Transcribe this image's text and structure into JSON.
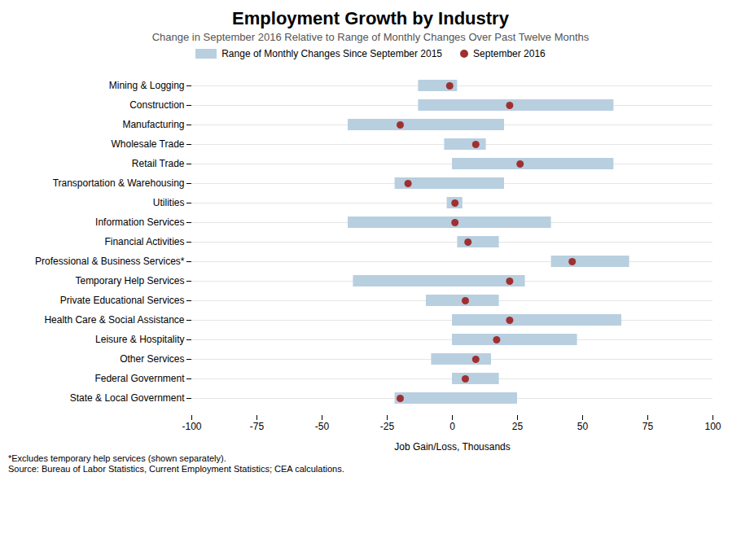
{
  "chart_data": {
    "type": "range",
    "orientation": "horizontal",
    "title": "Employment Growth by Industry",
    "subtitle": "Change in September 2016 Relative to Range of Monthly Changes Over Past Twelve Months",
    "xlabel": "Job Gain/Loss, Thousands",
    "annotations": [
      "*Excludes temporary help services (shown separately).",
      "Source: Bureau of Labor Statistics, Current Employment Statistics; CEA calculations."
    ],
    "categories": [
      "Mining & Logging",
      "Construction",
      "Manufacturing",
      "Wholesale Trade",
      "Retail Trade",
      "Transportation & Warehousing",
      "Utilities",
      "Information Services",
      "Financial Activities",
      "Professional & Business Services*",
      "Temporary Help Services",
      "Private Educational Services",
      "Health Care & Social Assistance",
      "Leisure & Hospitality",
      "Other Services",
      "Federal Government",
      "State & Local Government"
    ],
    "series": [
      {
        "name": "Range of Monthly Changes Since September 2015",
        "type": "range",
        "color": "#b8cfe0",
        "low": [
          -13,
          -13,
          -40,
          -3,
          0,
          -22,
          -2,
          -40,
          2,
          38,
          -38,
          -10,
          0,
          0,
          -8,
          0,
          -22
        ],
        "high": [
          2,
          62,
          20,
          13,
          62,
          20,
          4,
          38,
          18,
          68,
          28,
          18,
          65,
          48,
          15,
          18,
          25
        ]
      },
      {
        "name": "September 2016",
        "type": "scatter",
        "marker": "circle",
        "color": "#a03030",
        "values": [
          -1,
          22,
          -20,
          9,
          26,
          -17,
          1,
          1,
          6,
          46,
          22,
          5,
          22,
          17,
          9,
          5,
          -20
        ]
      }
    ],
    "xlim": [
      -100,
      100
    ],
    "xticks": [
      -100,
      -75,
      -50,
      -25,
      0,
      25,
      50,
      75,
      100
    ],
    "grid": true,
    "legend": "top"
  }
}
